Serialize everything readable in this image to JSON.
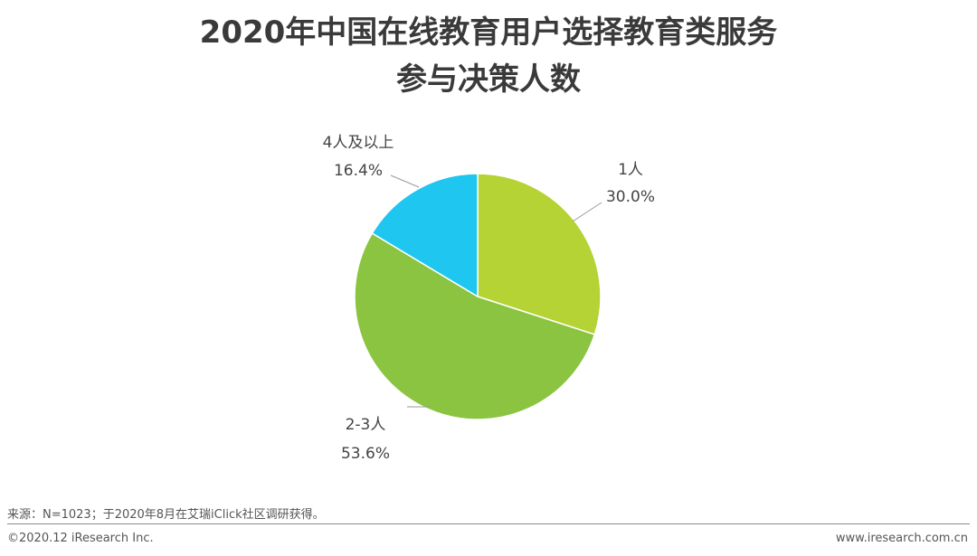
{
  "chart_data": {
    "type": "pie",
    "title_line1": "2020年中国在线教育用户选择教育类服务",
    "title_line2": "参与决策人数",
    "slices": [
      {
        "label": "1人",
        "value": 30.0,
        "value_label": "30.0%",
        "color": "#b5d334"
      },
      {
        "label": "2-3人",
        "value": 53.6,
        "value_label": "53.6%",
        "color": "#8bc441"
      },
      {
        "label": "4人及以上",
        "value": 16.4,
        "value_label": "16.4%",
        "color": "#1ec6f0"
      }
    ],
    "start_angle": "12 o'clock",
    "direction": "clockwise"
  },
  "footer": {
    "source": "来源：N=1023；于2020年8月在艾瑞iClick社区调研获得。",
    "copyright": "©2020.12 iResearch Inc.",
    "website": "www.iresearch.com.cn"
  }
}
